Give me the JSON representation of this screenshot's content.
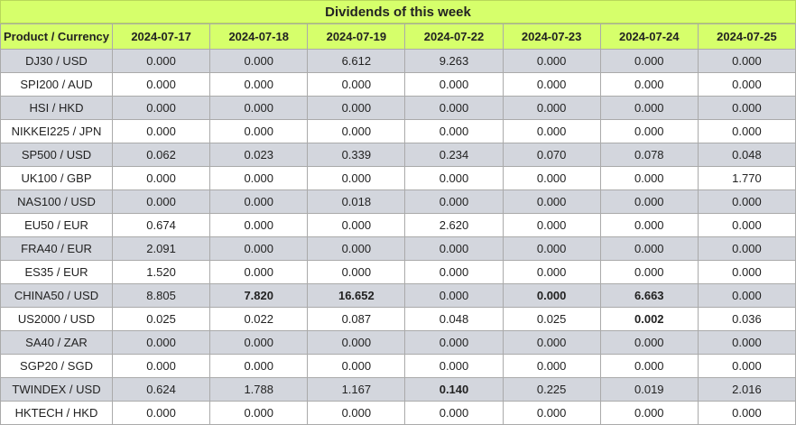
{
  "title": "Dividends of this week",
  "headers": [
    "Product / Currency",
    "2024-07-17",
    "2024-07-18",
    "2024-07-19",
    "2024-07-22",
    "2024-07-23",
    "2024-07-24",
    "2024-07-25"
  ],
  "rows": [
    {
      "product": "DJ30 / USD",
      "values": [
        "0.000",
        "0.000",
        "6.612",
        "9.263",
        "0.000",
        "0.000",
        "0.000"
      ],
      "bold": []
    },
    {
      "product": "SPI200 / AUD",
      "values": [
        "0.000",
        "0.000",
        "0.000",
        "0.000",
        "0.000",
        "0.000",
        "0.000"
      ],
      "bold": []
    },
    {
      "product": "HSI / HKD",
      "values": [
        "0.000",
        "0.000",
        "0.000",
        "0.000",
        "0.000",
        "0.000",
        "0.000"
      ],
      "bold": []
    },
    {
      "product": "NIKKEI225 / JPN",
      "values": [
        "0.000",
        "0.000",
        "0.000",
        "0.000",
        "0.000",
        "0.000",
        "0.000"
      ],
      "bold": []
    },
    {
      "product": "SP500 / USD",
      "values": [
        "0.062",
        "0.023",
        "0.339",
        "0.234",
        "0.070",
        "0.078",
        "0.048"
      ],
      "bold": []
    },
    {
      "product": "UK100 / GBP",
      "values": [
        "0.000",
        "0.000",
        "0.000",
        "0.000",
        "0.000",
        "0.000",
        "1.770"
      ],
      "bold": []
    },
    {
      "product": "NAS100 / USD",
      "values": [
        "0.000",
        "0.000",
        "0.018",
        "0.000",
        "0.000",
        "0.000",
        "0.000"
      ],
      "bold": []
    },
    {
      "product": "EU50 / EUR",
      "values": [
        "0.674",
        "0.000",
        "0.000",
        "2.620",
        "0.000",
        "0.000",
        "0.000"
      ],
      "bold": []
    },
    {
      "product": "FRA40 / EUR",
      "values": [
        "2.091",
        "0.000",
        "0.000",
        "0.000",
        "0.000",
        "0.000",
        "0.000"
      ],
      "bold": []
    },
    {
      "product": "ES35 / EUR",
      "values": [
        "1.520",
        "0.000",
        "0.000",
        "0.000",
        "0.000",
        "0.000",
        "0.000"
      ],
      "bold": []
    },
    {
      "product": "CHINA50 / USD",
      "values": [
        "8.805",
        "7.820",
        "16.652",
        "0.000",
        "0.000",
        "6.663",
        "0.000"
      ],
      "bold": [
        1,
        2,
        4,
        5
      ]
    },
    {
      "product": "US2000 / USD",
      "values": [
        "0.025",
        "0.022",
        "0.087",
        "0.048",
        "0.025",
        "0.002",
        "0.036"
      ],
      "bold": [
        5
      ]
    },
    {
      "product": "SA40 / ZAR",
      "values": [
        "0.000",
        "0.000",
        "0.000",
        "0.000",
        "0.000",
        "0.000",
        "0.000"
      ],
      "bold": []
    },
    {
      "product": "SGP20 / SGD",
      "values": [
        "0.000",
        "0.000",
        "0.000",
        "0.000",
        "0.000",
        "0.000",
        "0.000"
      ],
      "bold": []
    },
    {
      "product": "TWINDEX / USD",
      "values": [
        "0.624",
        "1.788",
        "1.167",
        "0.140",
        "0.225",
        "0.019",
        "2.016"
      ],
      "bold": [
        3
      ]
    },
    {
      "product": "HKTECH / HKD",
      "values": [
        "0.000",
        "0.000",
        "0.000",
        "0.000",
        "0.000",
        "0.000",
        "0.000"
      ],
      "bold": []
    }
  ]
}
